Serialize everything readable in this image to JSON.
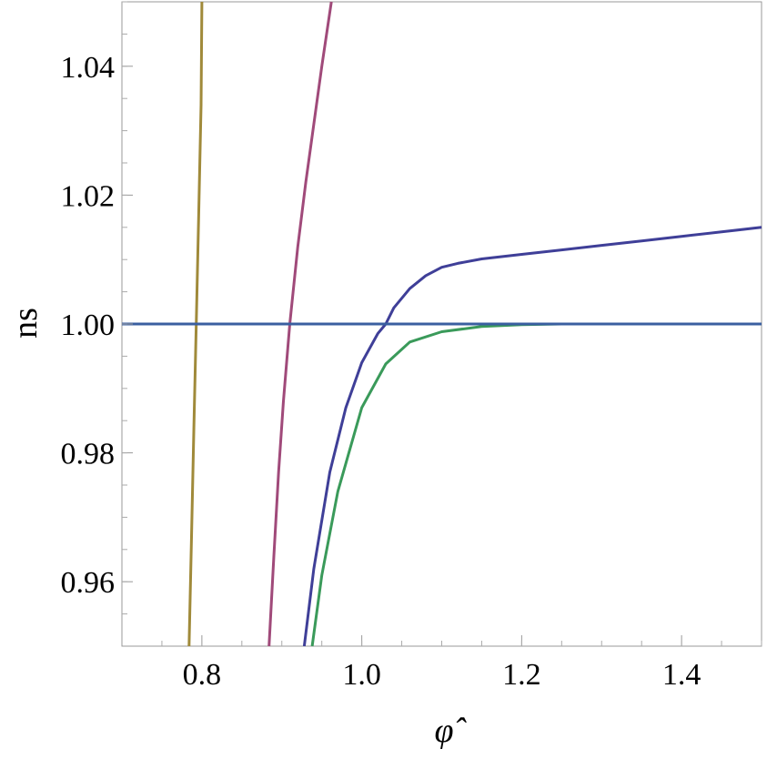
{
  "chart_data": {
    "type": "line",
    "title": "",
    "xlabel": "φ̂",
    "ylabel": "ns",
    "xlim": [
      0.7,
      1.5
    ],
    "ylim": [
      0.95,
      1.05
    ],
    "xticks": [
      "0.8",
      "1.0",
      "1.2",
      "1.4"
    ],
    "yticks": [
      "0.96",
      "0.98",
      "1.00",
      "1.02",
      "1.04"
    ],
    "grid": false,
    "legend": "none",
    "series": [
      {
        "color": "#a08a3a",
        "x": [
          0.784,
          0.787,
          0.79,
          0.793,
          0.796,
          0.799,
          0.8
        ],
        "y": [
          0.95,
          0.967,
          0.984,
          1.0,
          1.017,
          1.034,
          1.05
        ]
      },
      {
        "color": "#a04a7a",
        "x": [
          0.884,
          0.89,
          0.896,
          0.902,
          0.91,
          0.92,
          0.93,
          0.94,
          0.95,
          0.962
        ],
        "y": [
          0.95,
          0.964,
          0.977,
          0.988,
          1.0,
          1.012,
          1.022,
          1.031,
          1.04,
          1.05
        ]
      },
      {
        "color": "#3f3f98",
        "x": [
          0.928,
          0.94,
          0.96,
          0.98,
          1.0,
          1.02,
          1.03,
          1.04,
          1.06,
          1.08,
          1.1,
          1.12,
          1.15,
          1.2,
          1.25,
          1.3,
          1.35,
          1.4,
          1.45,
          1.5
        ],
        "y": [
          0.95,
          0.962,
          0.977,
          0.987,
          0.994,
          0.9985,
          1.0,
          1.0025,
          1.0055,
          1.0075,
          1.0088,
          1.0094,
          1.0101,
          1.0108,
          1.0115,
          1.0122,
          1.0129,
          1.0136,
          1.0143,
          1.015
        ]
      },
      {
        "color": "#3a9a5a",
        "x": [
          0.938,
          0.95,
          0.97,
          1.0,
          1.03,
          1.06,
          1.1,
          1.15,
          1.2,
          1.25,
          1.3,
          1.4,
          1.5
        ],
        "y": [
          0.95,
          0.961,
          0.974,
          0.987,
          0.9938,
          0.9972,
          0.9988,
          0.9996,
          0.9999,
          1.0,
          1.0,
          1.0,
          1.0
        ]
      },
      {
        "color": "#3a5fa0",
        "x": [
          0.7,
          1.5
        ],
        "y": [
          1.0,
          1.0
        ]
      }
    ]
  }
}
